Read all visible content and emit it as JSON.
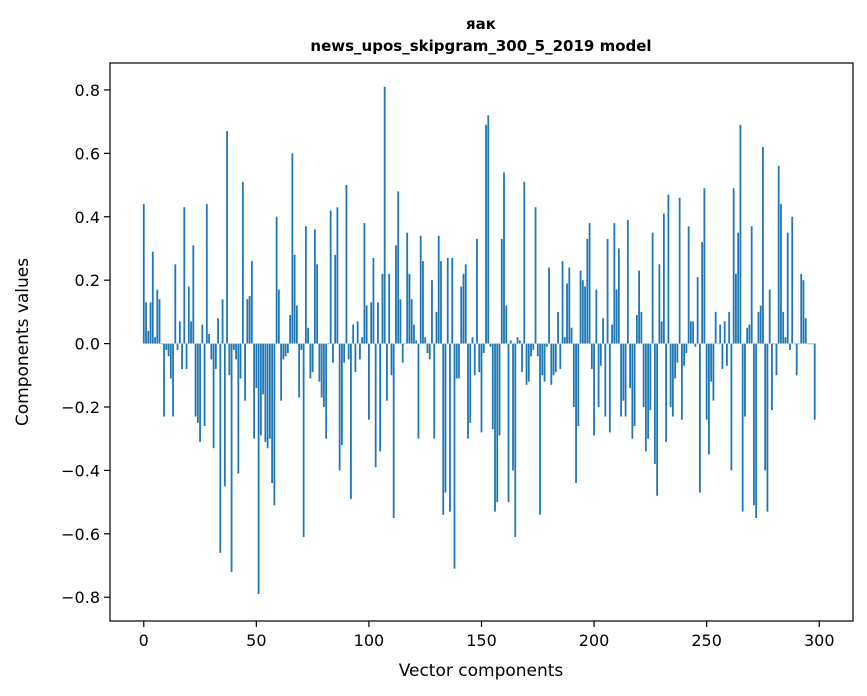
{
  "chart_data": {
    "type": "bar",
    "title": "яак",
    "subtitle": "news_upos_skipgram_300_5_2019 model",
    "xlabel": "Vector components",
    "ylabel": "Components values",
    "xlim": [
      -15,
      315
    ],
    "ylim": [
      -0.875,
      0.885
    ],
    "xticks": [
      0,
      50,
      100,
      150,
      200,
      250,
      300
    ],
    "yticks": [
      -0.8,
      -0.6,
      -0.4,
      -0.2,
      0.0,
      0.2,
      0.4,
      0.6,
      0.8
    ],
    "xtick_labels": [
      "0",
      "50",
      "100",
      "150",
      "200",
      "250",
      "300"
    ],
    "ytick_labels": [
      "−0.8",
      "−0.6",
      "−0.4",
      "−0.2",
      "0.0",
      "0.2",
      "0.4",
      "0.6",
      "0.8"
    ],
    "bar_color": "#1f77b4",
    "values": [
      0.44,
      0.13,
      0.04,
      0.13,
      0.29,
      0.02,
      0.17,
      0.14,
      0.0,
      -0.23,
      -0.02,
      -0.04,
      -0.11,
      -0.23,
      0.25,
      -0.02,
      0.07,
      -0.08,
      0.43,
      -0.08,
      0.18,
      0.07,
      0.31,
      -0.23,
      -0.25,
      -0.31,
      0.06,
      -0.26,
      0.44,
      0.03,
      -0.05,
      -0.33,
      -0.08,
      0.08,
      -0.66,
      0.14,
      -0.45,
      0.67,
      -0.1,
      -0.72,
      -0.02,
      -0.05,
      -0.41,
      -0.11,
      0.51,
      -0.18,
      0.14,
      0.15,
      0.26,
      -0.3,
      -0.14,
      -0.79,
      -0.29,
      -0.16,
      -0.31,
      -0.33,
      -0.3,
      -0.44,
      -0.51,
      0.4,
      0.17,
      -0.18,
      -0.05,
      -0.04,
      -0.03,
      0.09,
      0.6,
      0.28,
      0.12,
      -0.17,
      -0.02,
      -0.61,
      0.37,
      0.05,
      -0.11,
      -0.09,
      0.36,
      0.25,
      -0.12,
      -0.17,
      -0.2,
      -0.3,
      0.0,
      0.42,
      -0.06,
      0.28,
      0.43,
      -0.4,
      -0.32,
      -0.06,
      0.5,
      -0.05,
      -0.49,
      0.06,
      -0.09,
      0.07,
      -0.05,
      0.02,
      0.38,
      0.12,
      -0.24,
      0.13,
      0.27,
      -0.39,
      0.13,
      -0.34,
      0.22,
      0.81,
      -0.18,
      0.22,
      -0.1,
      -0.55,
      0.31,
      0.48,
      0.14,
      -0.06,
      0.0,
      0.35,
      0.22,
      0.14,
      0.06,
      0.01,
      -0.3,
      0.34,
      0.26,
      0.02,
      -0.03,
      -0.05,
      0.2,
      -0.3,
      0.1,
      0.34,
      0.26,
      -0.54,
      -0.47,
      0.27,
      -0.53,
      0.27,
      -0.71,
      -0.11,
      -0.11,
      0.18,
      0.22,
      0.25,
      -0.3,
      -0.25,
      0.02,
      -0.1,
      0.33,
      -0.09,
      -0.28,
      -0.03,
      0.69,
      0.72,
      -0.01,
      -0.27,
      -0.53,
      -0.5,
      -0.29,
      0.33,
      0.54,
      0.12,
      -0.5,
      0.01,
      -0.4,
      -0.61,
      0.02,
      0.01,
      -0.09,
      0.51,
      -0.13,
      -0.12,
      -0.04,
      -0.02,
      0.43,
      -0.04,
      -0.54,
      -0.1,
      -0.12,
      -0.01,
      0.24,
      -0.13,
      -0.1,
      -0.09,
      0.1,
      -0.08,
      0.26,
      0.02,
      0.19,
      0.24,
      0.05,
      -0.2,
      -0.44,
      -0.26,
      0.23,
      0.2,
      0.18,
      0.33,
      0.38,
      -0.08,
      -0.29,
      0.17,
      -0.2,
      -0.07,
      0.08,
      -0.23,
      0.33,
      -0.28,
      0.06,
      0.38,
      0.17,
      0.3,
      -0.23,
      -0.18,
      -0.23,
      0.39,
      -0.14,
      -0.3,
      -0.26,
      0.09,
      0.23,
      0.1,
      -0.2,
      -0.34,
      -0.3,
      -0.21,
      0.35,
      -0.38,
      -0.48,
      0.25,
      0.07,
      0.41,
      -0.31,
      0.47,
      -0.2,
      -0.23,
      -0.11,
      -0.06,
      0.46,
      -0.24,
      -0.07,
      -0.03,
      0.37,
      0.07,
      0.07,
      -0.01,
      0.21,
      -0.47,
      0.32,
      0.49,
      -0.24,
      -0.35,
      -0.12,
      -0.18,
      0.1,
      0.0,
      0.06,
      -0.08,
      0.07,
      -0.07,
      0.1,
      -0.4,
      0.49,
      0.22,
      0.35,
      0.69,
      -0.53,
      -0.23,
      0.05,
      0.06,
      0.37,
      -0.51,
      -0.55,
      0.1,
      0.12,
      0.62,
      -0.4,
      -0.53,
      0.17,
      -0.21,
      0.0,
      -0.1,
      0.56,
      0.44,
      0.1,
      0.02,
      0.35,
      -0.02,
      0.4,
      0.0,
      -0.1,
      0.0,
      0.22,
      0.2,
      0.08,
      0.0,
      0.0,
      0.0,
      -0.24
    ]
  }
}
